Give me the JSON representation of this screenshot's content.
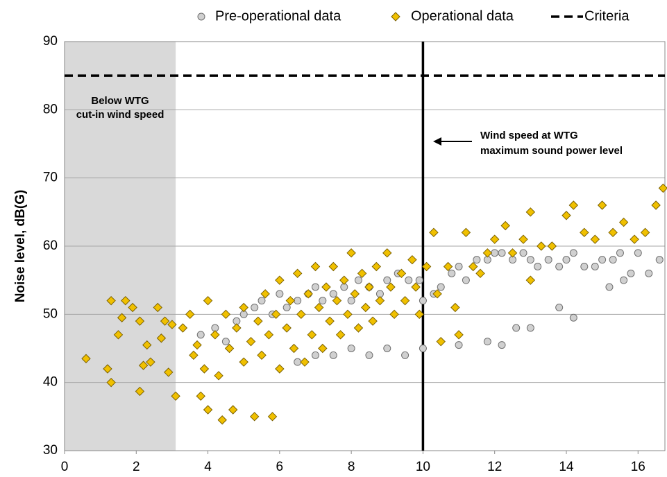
{
  "chart_data": {
    "type": "scatter",
    "y_label": "Noise level, dB(G)",
    "xlim": [
      0,
      16.75
    ],
    "ylim": [
      30,
      90
    ],
    "xticks": [
      0,
      2,
      4,
      6,
      8,
      10,
      12,
      14,
      16
    ],
    "yticks": [
      30,
      40,
      50,
      60,
      70,
      80,
      90
    ],
    "grid": true,
    "legend": "top",
    "series": [
      {
        "name": "Pre-operational data",
        "marker": "circle",
        "color": "#d0d0d0",
        "edge_color": "#6f6f6f",
        "x": [
          3.8,
          4.2,
          4.5,
          4.8,
          5.0,
          5.3,
          5.5,
          5.8,
          6.0,
          6.2,
          6.5,
          6.8,
          7.0,
          7.2,
          7.5,
          7.8,
          8.0,
          8.2,
          8.5,
          8.8,
          9.0,
          9.3,
          9.6,
          9.9,
          10.0,
          10.3,
          10.5,
          10.8,
          11.0,
          11.2,
          11.5,
          11.8,
          12.0,
          12.2,
          12.5,
          12.8,
          13.0,
          13.2,
          13.5,
          13.8,
          14.0,
          14.2,
          14.5,
          14.8,
          15.0,
          15.3,
          15.5,
          15.8,
          16.0,
          16.3,
          16.6,
          6.5,
          7.0,
          7.5,
          8.0,
          8.5,
          9.0,
          9.5,
          10.0,
          11.0,
          11.8,
          12.2,
          12.6,
          13.0,
          13.8,
          14.2,
          15.2,
          15.6
        ],
        "values": [
          47,
          48,
          46,
          49,
          50,
          51,
          52,
          50,
          53,
          51,
          52,
          53,
          54,
          52,
          53,
          54,
          52,
          55,
          54,
          53,
          55,
          56,
          55,
          55,
          52,
          53,
          54,
          56,
          57,
          55,
          58,
          58,
          59,
          59,
          58,
          59,
          58,
          57,
          58,
          57,
          58,
          59,
          57,
          57,
          58,
          58,
          59,
          56,
          59,
          56,
          58,
          43,
          44,
          44,
          45,
          44,
          45,
          44,
          45,
          45.5,
          46,
          45.5,
          48,
          48,
          51,
          49.5,
          54,
          55
        ]
      },
      {
        "name": "Operational data",
        "marker": "diamond",
        "color": "#f0c000",
        "edge_color": "#7a6000",
        "x": [
          0.6,
          1.2,
          1.3,
          1.3,
          1.5,
          1.6,
          1.7,
          1.9,
          2.1,
          2.1,
          2.2,
          2.3,
          2.4,
          2.6,
          2.7,
          2.8,
          2.9,
          3.0,
          3.1,
          3.3,
          3.5,
          3.6,
          3.7,
          3.8,
          3.9,
          4.0,
          4.0,
          4.2,
          4.3,
          4.4,
          4.5,
          4.6,
          4.7,
          4.8,
          5.0,
          5.0,
          5.2,
          5.3,
          5.4,
          5.5,
          5.6,
          5.7,
          5.8,
          5.9,
          6.0,
          6.0,
          6.2,
          6.3,
          6.4,
          6.5,
          6.6,
          6.7,
          6.8,
          6.9,
          7.0,
          7.1,
          7.2,
          7.3,
          7.4,
          7.5,
          7.6,
          7.7,
          7.8,
          7.9,
          8.0,
          8.1,
          8.2,
          8.3,
          8.4,
          8.5,
          8.6,
          8.7,
          8.8,
          9.0,
          9.1,
          9.2,
          9.4,
          9.5,
          9.7,
          9.8,
          9.9,
          10.1,
          10.3,
          10.4,
          10.5,
          10.7,
          10.9,
          11.0,
          11.2,
          11.4,
          11.6,
          11.8,
          12.0,
          12.3,
          12.5,
          12.8,
          13.0,
          13.0,
          13.3,
          13.6,
          14.0,
          14.2,
          14.5,
          14.8,
          15.0,
          15.3,
          15.6,
          15.9,
          16.2,
          16.5,
          16.7
        ],
        "values": [
          43.5,
          42,
          52,
          40,
          47,
          49.5,
          52,
          51,
          49,
          38.7,
          42.5,
          45.5,
          43,
          51,
          46.5,
          49,
          41.5,
          48.5,
          38,
          48,
          50,
          44,
          45.5,
          38,
          42,
          36,
          52,
          47,
          41,
          34.5,
          50,
          45,
          36,
          48,
          43,
          51,
          46,
          35,
          49,
          44,
          53,
          47,
          35,
          50,
          42,
          55,
          48,
          52,
          45,
          56,
          50,
          43,
          53,
          47,
          57,
          51,
          45,
          54,
          49,
          57,
          52,
          47,
          55,
          50,
          59,
          53,
          48,
          56,
          51,
          54,
          49,
          57,
          52,
          59,
          54,
          50,
          56,
          52,
          58,
          54,
          50,
          57,
          62,
          53,
          46,
          57,
          51,
          47,
          62,
          57,
          56,
          59,
          61,
          63,
          59,
          61,
          55,
          65,
          60,
          60,
          64.5,
          66,
          62,
          61,
          66,
          62,
          63.5,
          61,
          62,
          66,
          68.5
        ]
      }
    ],
    "criteria": {
      "name": "Criteria",
      "value": 85,
      "color": "#000000"
    },
    "shaded_region": {
      "x": [
        0,
        3.1
      ],
      "color": "#d9d9d9",
      "label": [
        "Below WTG",
        "cut-in wind speed"
      ]
    },
    "reference_line": {
      "x": 10,
      "label": [
        "Wind speed at WTG",
        "maximum sound power level"
      ]
    }
  }
}
